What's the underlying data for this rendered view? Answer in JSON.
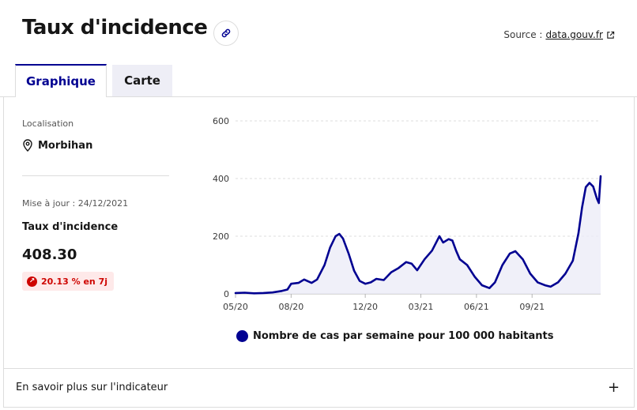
{
  "header": {
    "title": "Taux d'incidence",
    "source_prefix": "Source :",
    "source_link": "data.gouv.fr"
  },
  "tabs": [
    {
      "label": "Graphique",
      "active": true
    },
    {
      "label": "Carte",
      "active": false
    }
  ],
  "sidebar": {
    "location_label": "Localisation",
    "location_value": "Morbihan",
    "update_text": "Mise à jour : 24/12/2021",
    "indicator_name": "Taux d'incidence",
    "indicator_value": "408.30",
    "change_badge": "20.13 % en 7j"
  },
  "colors": {
    "series": "#000091",
    "series_fill": "#ececf8",
    "badge_red": "#ce0500",
    "badge_bg": "#fee9e9"
  },
  "footer": {
    "label": "En savoir plus sur l'indicateur",
    "expand_icon": "+"
  },
  "chart_data": {
    "type": "area",
    "title": "",
    "xlabel": "",
    "ylabel": "",
    "ylim": [
      0,
      600
    ],
    "yticks": [
      0,
      200,
      400,
      600
    ],
    "xtick_labels": [
      "05/20",
      "08/20",
      "12/20",
      "03/21",
      "06/21",
      "09/21"
    ],
    "xtick_months": [
      0,
      3,
      7,
      10,
      13,
      16
    ],
    "grid": "horizontal dashed",
    "legend": "bottom",
    "series": [
      {
        "name": "Nombre de cas par semaine pour 100 000 habitants",
        "points": [
          [
            0,
            3
          ],
          [
            0.5,
            4
          ],
          [
            1,
            2
          ],
          [
            1.5,
            3
          ],
          [
            2,
            5
          ],
          [
            2.5,
            10
          ],
          [
            2.8,
            15
          ],
          [
            3,
            35
          ],
          [
            3.4,
            38
          ],
          [
            3.7,
            50
          ],
          [
            4.1,
            38
          ],
          [
            4.4,
            50
          ],
          [
            4.8,
            100
          ],
          [
            5.1,
            160
          ],
          [
            5.4,
            200
          ],
          [
            5.6,
            208
          ],
          [
            5.8,
            192
          ],
          [
            6.1,
            140
          ],
          [
            6.4,
            80
          ],
          [
            6.7,
            45
          ],
          [
            7,
            35
          ],
          [
            7.3,
            40
          ],
          [
            7.6,
            52
          ],
          [
            8,
            48
          ],
          [
            8.4,
            75
          ],
          [
            8.8,
            90
          ],
          [
            9.2,
            110
          ],
          [
            9.5,
            105
          ],
          [
            9.8,
            82
          ],
          [
            10.2,
            120
          ],
          [
            10.6,
            150
          ],
          [
            11,
            200
          ],
          [
            11.2,
            178
          ],
          [
            11.5,
            190
          ],
          [
            11.7,
            185
          ],
          [
            11.9,
            150
          ],
          [
            12.1,
            120
          ],
          [
            12.5,
            100
          ],
          [
            12.9,
            60
          ],
          [
            13.3,
            30
          ],
          [
            13.7,
            20
          ],
          [
            14,
            40
          ],
          [
            14.4,
            100
          ],
          [
            14.8,
            140
          ],
          [
            15.1,
            148
          ],
          [
            15.5,
            120
          ],
          [
            15.9,
            70
          ],
          [
            16.3,
            40
          ],
          [
            16.7,
            30
          ],
          [
            17,
            25
          ],
          [
            17.4,
            40
          ],
          [
            17.8,
            70
          ],
          [
            18.2,
            115
          ],
          [
            18.5,
            210
          ],
          [
            18.7,
            300
          ],
          [
            18.9,
            370
          ],
          [
            19.1,
            385
          ],
          [
            19.3,
            372
          ],
          [
            19.5,
            330
          ],
          [
            19.6,
            315
          ],
          [
            19.7,
            408.3
          ]
        ]
      }
    ]
  }
}
